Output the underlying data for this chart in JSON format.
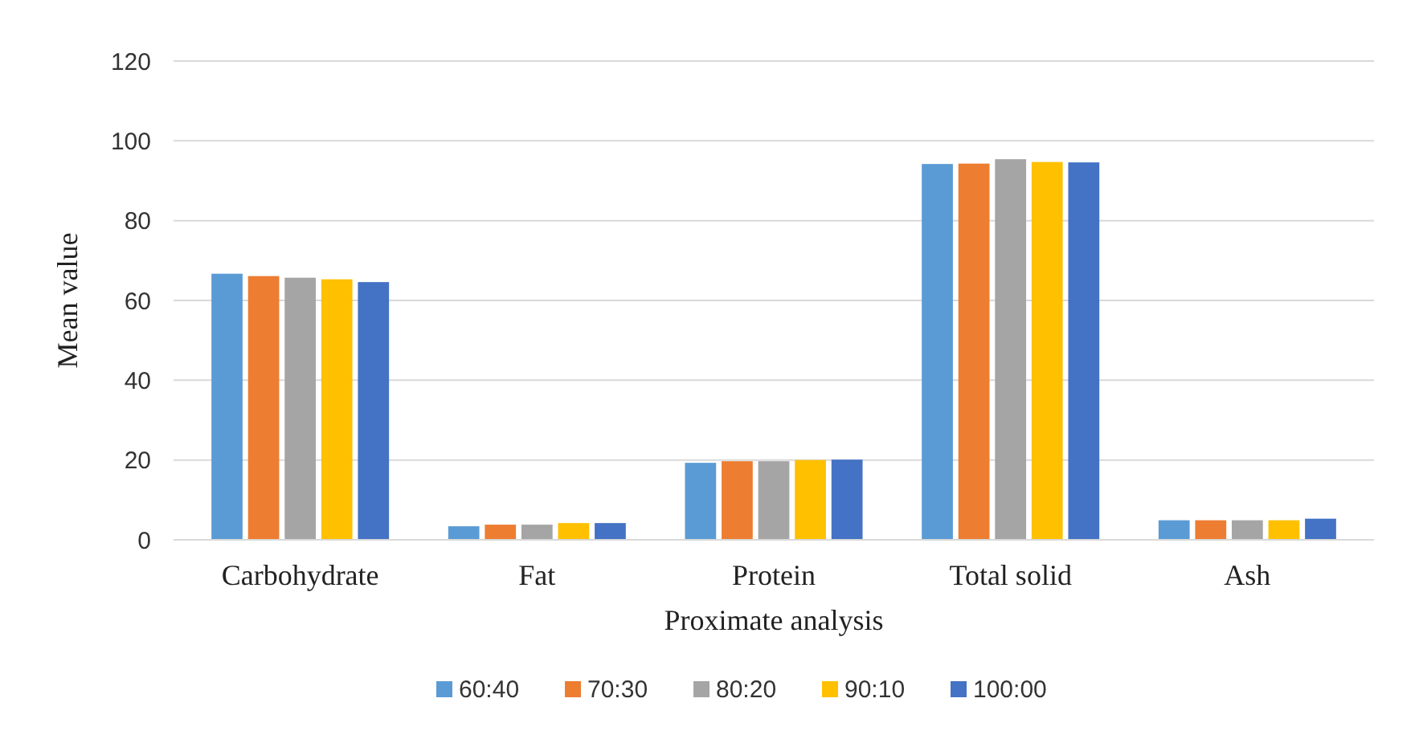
{
  "chart_data": {
    "type": "bar",
    "xlabel": "Proximate analysis",
    "ylabel": "Mean value",
    "categories": [
      "Carbohydrate",
      "Fat",
      "Protein",
      "Total solid",
      "Ash"
    ],
    "series": [
      {
        "name": "60:40",
        "color": "#5b9bd5",
        "values": [
          66.7,
          3.4,
          19.3,
          94.2,
          4.9
        ]
      },
      {
        "name": "70:30",
        "color": "#ed7d31",
        "values": [
          66.1,
          3.8,
          19.7,
          94.3,
          4.9
        ]
      },
      {
        "name": "80:20",
        "color": "#a5a5a5",
        "values": [
          65.7,
          3.8,
          19.7,
          95.4,
          4.9
        ]
      },
      {
        "name": "90:10",
        "color": "#ffc000",
        "values": [
          65.3,
          4.2,
          20.0,
          94.7,
          4.9
        ]
      },
      {
        "name": "100:00",
        "color": "#4472c4",
        "values": [
          64.6,
          4.2,
          20.1,
          94.6,
          5.3
        ]
      }
    ],
    "ylim": [
      0,
      120
    ],
    "yticks": [
      0,
      20,
      40,
      60,
      80,
      100,
      120
    ],
    "grid": "y",
    "legend": "bottom"
  }
}
